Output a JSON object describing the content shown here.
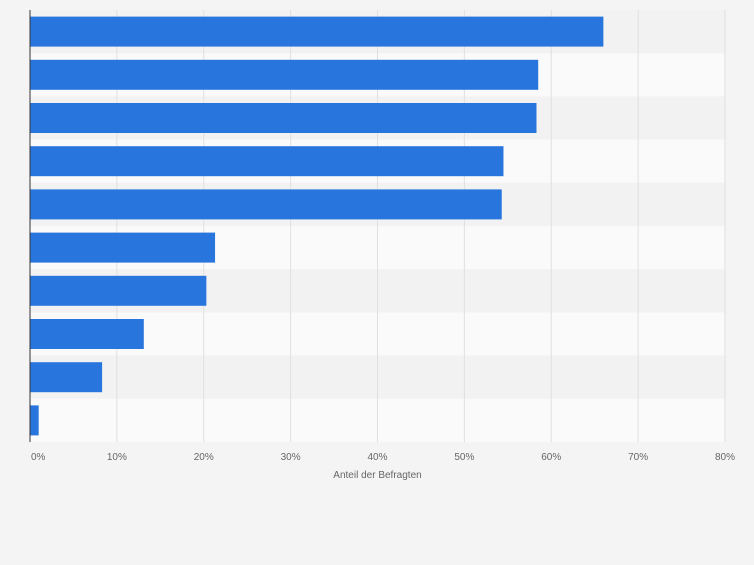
{
  "chart_data": {
    "type": "bar",
    "orientation": "horizontal",
    "categories": [
      "",
      "",
      "",
      "",
      "",
      "",
      "",
      "",
      "",
      ""
    ],
    "values": [
      66,
      58.5,
      58.3,
      54.5,
      54.3,
      21.3,
      20.3,
      13.1,
      8.3,
      1.0
    ],
    "xlabel": "Anteil der Befragten",
    "ylabel": "",
    "xlim": [
      0,
      80
    ],
    "xticks": [
      {
        "value": 0,
        "label": "0%"
      },
      {
        "value": 10,
        "label": "10%"
      },
      {
        "value": 20,
        "label": "20%"
      },
      {
        "value": 30,
        "label": "30%"
      },
      {
        "value": 40,
        "label": "40%"
      },
      {
        "value": 50,
        "label": "50%"
      },
      {
        "value": 60,
        "label": "60%"
      },
      {
        "value": 70,
        "label": "70%"
      },
      {
        "value": 80,
        "label": "80%"
      }
    ],
    "grid": true,
    "legend": "none",
    "colors": {
      "bar": "#2876dd",
      "grid": "#e0e0e0",
      "band_light": "#fafafa",
      "band_dark": "#f2f2f2",
      "axis": "#333333",
      "tick_text": "#666666",
      "background": "#f4f4f4"
    }
  }
}
